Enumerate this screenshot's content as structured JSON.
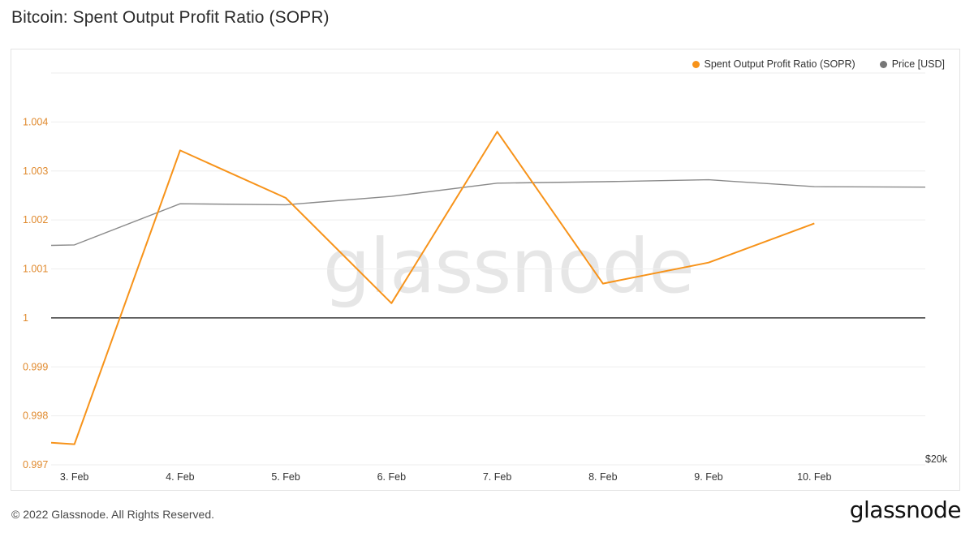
{
  "title": "Bitcoin: Spent Output Profit Ratio (SOPR)",
  "watermark": "glassnode",
  "footer": {
    "copyright": "© 2022 Glassnode. All Rights Reserved.",
    "brand": "glassnode"
  },
  "legend": [
    {
      "label": "Spent Output Profit Ratio (SOPR)",
      "color": "#f7931a"
    },
    {
      "label": "Price [USD]",
      "color": "#777777"
    }
  ],
  "chart_data": {
    "type": "line",
    "title": "Bitcoin: Spent Output Profit Ratio (SOPR)",
    "legend_position": "top-right",
    "grid": true,
    "ylim": [
      0.997,
      1.005
    ],
    "yticks": [
      "0.997",
      "0.998",
      "0.999",
      "1",
      "1.001",
      "1.002",
      "1.003",
      "1.004"
    ],
    "baseline": 1,
    "xticks": [
      {
        "label": "3. Feb",
        "x": 1
      },
      {
        "label": "4. Feb",
        "x": 2
      },
      {
        "label": "5. Feb",
        "x": 3
      },
      {
        "label": "6. Feb",
        "x": 4
      },
      {
        "label": "7. Feb",
        "x": 5
      },
      {
        "label": "8. Feb",
        "x": 6
      },
      {
        "label": "9. Feb",
        "x": 7
      },
      {
        "label": "10. Feb",
        "x": 8
      }
    ],
    "xlim": [
      0.78,
      9.05
    ],
    "right_axis_label": "$20k",
    "series": [
      {
        "name": "Spent Output Profit Ratio (SOPR)",
        "color": "#f7931a",
        "x": [
          0.78,
          1,
          2,
          3,
          4,
          5,
          6,
          7,
          8
        ],
        "y": [
          0.99745,
          0.99742,
          1.00342,
          1.00245,
          1.0003,
          1.0038,
          1.0007,
          1.00113,
          1.00193
        ]
      },
      {
        "name": "Price [USD]",
        "color": "#8a8a8a",
        "x": [
          0.78,
          1,
          2,
          3,
          4,
          5,
          6,
          7,
          8,
          9.05
        ],
        "y": [
          1.00148,
          1.00149,
          1.00233,
          1.00231,
          1.00248,
          1.00275,
          1.00278,
          1.00282,
          1.00268,
          1.00267
        ]
      }
    ]
  }
}
